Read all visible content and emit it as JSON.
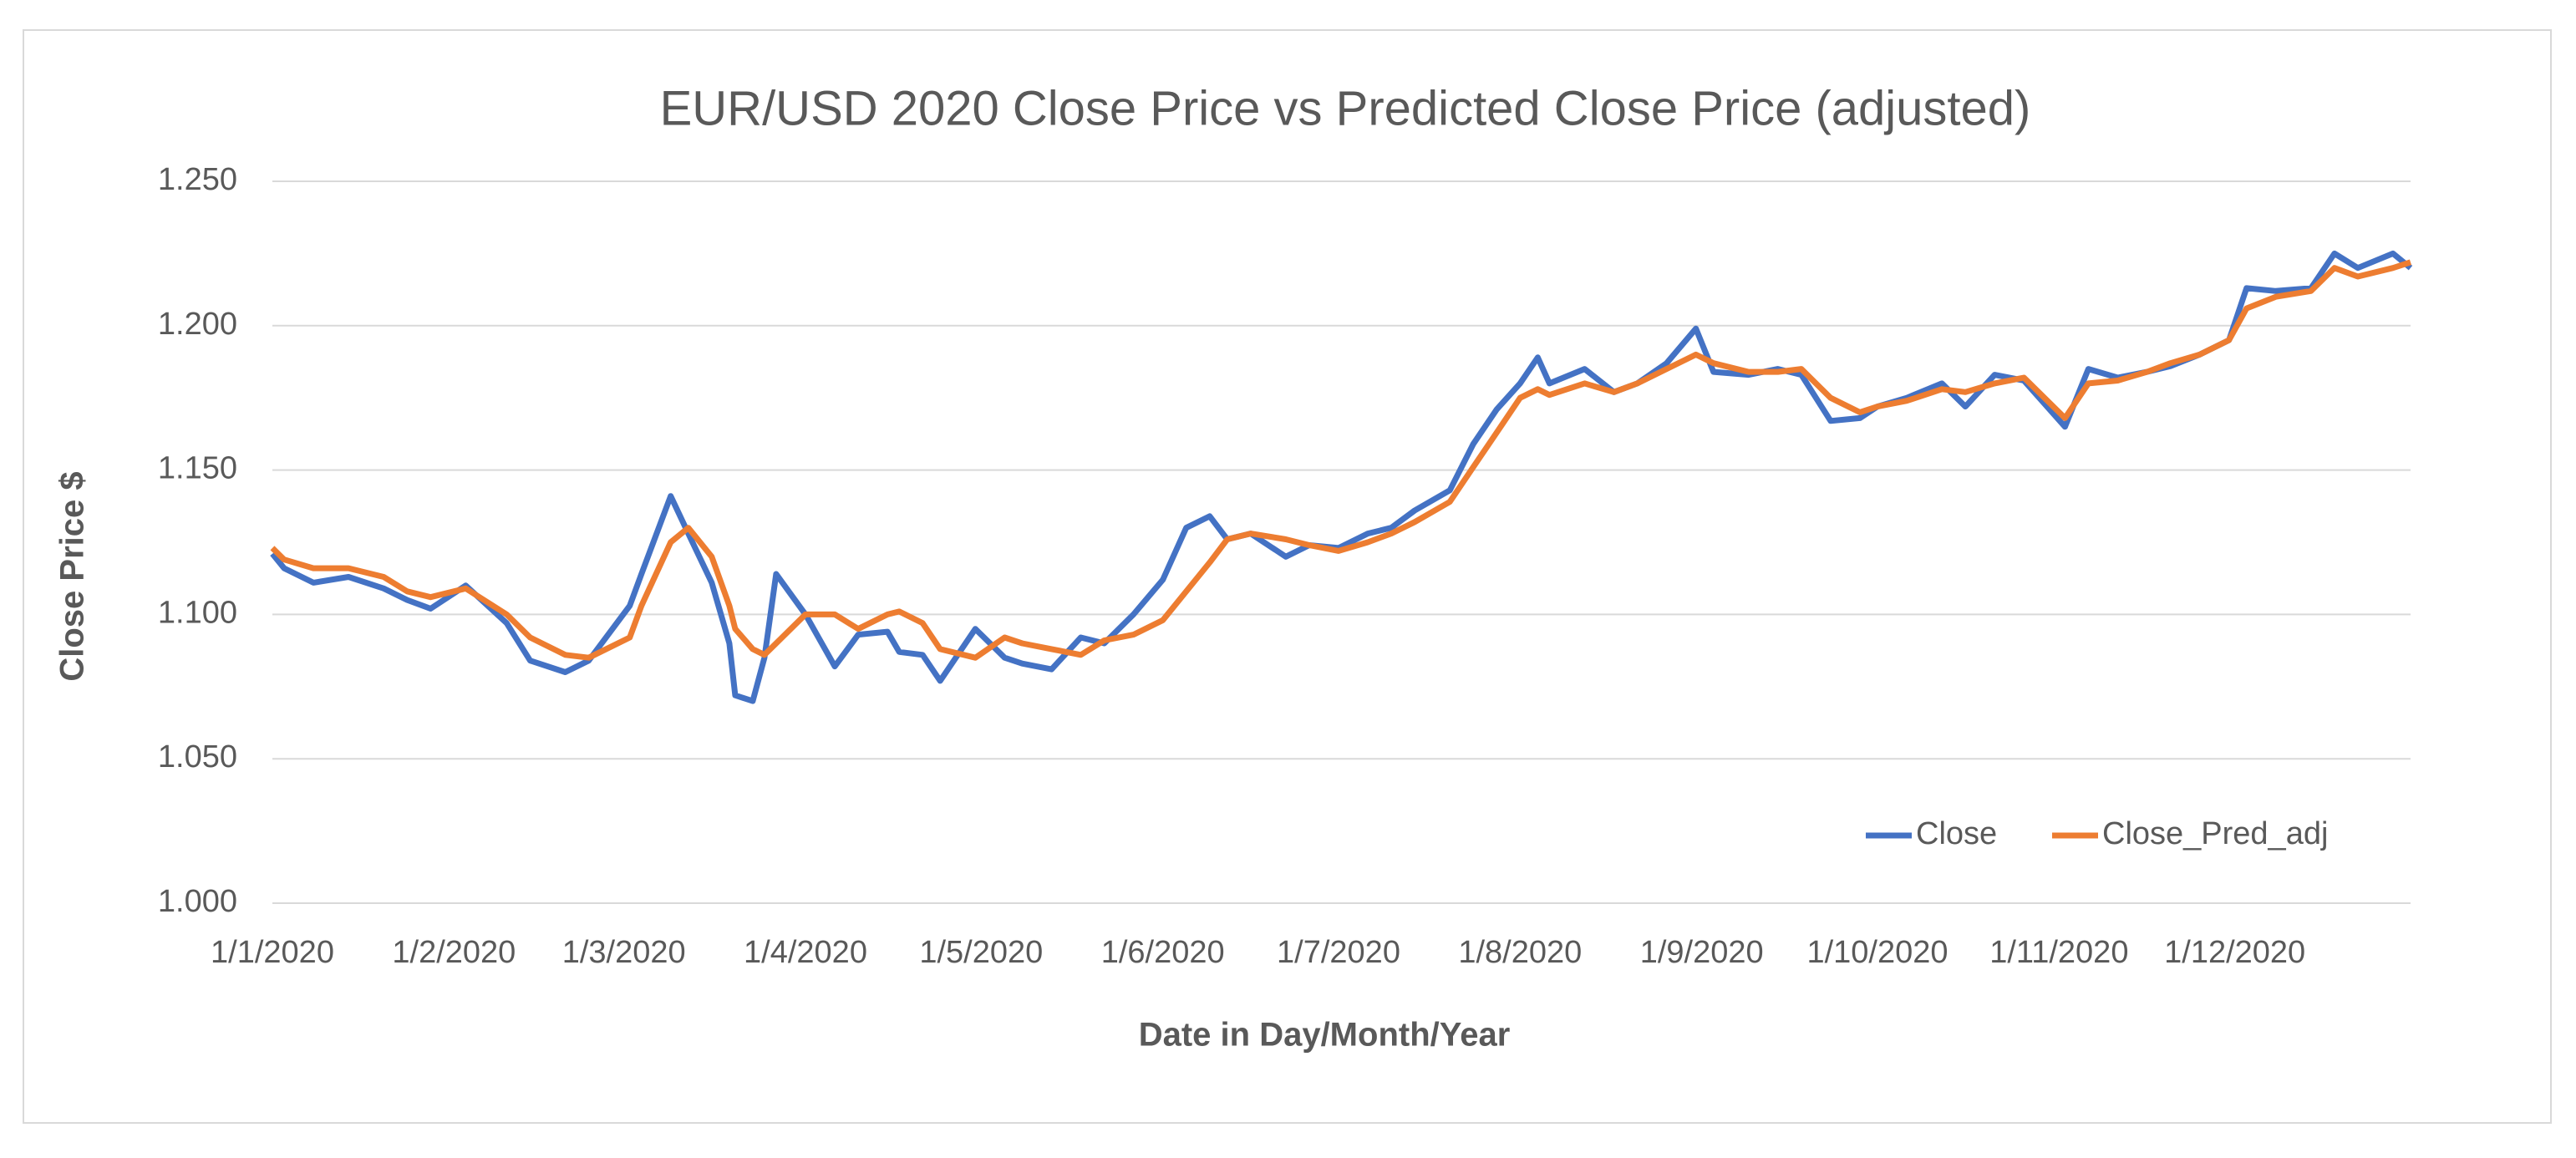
{
  "chart_data": {
    "type": "line",
    "title": "EUR/USD 2020 Close Price vs Predicted Close Price (adjusted)",
    "x_label": "Date in Day/Month/Year",
    "y_label": "Close Price $",
    "x": [
      "1/1/2020",
      "3/1/2020",
      "8/1/2020",
      "14/1/2020",
      "20/1/2020",
      "24/1/2020",
      "28/1/2020",
      "3/2/2020",
      "10/2/2020",
      "14/2/2020",
      "20/2/2020",
      "24/2/2020",
      "2/3/2020",
      "4/3/2020",
      "9/3/2020",
      "12/3/2020",
      "16/3/2020",
      "19/3/2020",
      "20/3/2020",
      "23/3/2020",
      "25/3/2020",
      "27/3/2020",
      "1/4/2020",
      "6/4/2020",
      "10/4/2020",
      "15/4/2020",
      "17/4/2020",
      "21/4/2020",
      "24/4/2020",
      "30/4/2020",
      "5/5/2020",
      "8/5/2020",
      "13/5/2020",
      "18/5/2020",
      "22/5/2020",
      "27/5/2020",
      "1/6/2020",
      "5/6/2020",
      "9/6/2020",
      "12/6/2020",
      "16/6/2020",
      "22/6/2020",
      "26/6/2020",
      "1/7/2020",
      "6/7/2020",
      "10/7/2020",
      "14/7/2020",
      "20/7/2020",
      "24/7/2020",
      "28/7/2020",
      "1/8/2020",
      "4/8/2020",
      "6/8/2020",
      "12/8/2020",
      "17/8/2020",
      "21/8/2020",
      "26/8/2020",
      "31/8/2020",
      "3/9/2020",
      "9/9/2020",
      "14/9/2020",
      "18/9/2020",
      "23/9/2020",
      "28/9/2020",
      "1/10/2020",
      "6/10/2020",
      "12/10/2020",
      "16/10/2020",
      "21/10/2020",
      "26/10/2020",
      "2/11/2020",
      "6/11/2020",
      "11/11/2020",
      "16/11/2020",
      "20/11/2020",
      "25/11/2020",
      "30/11/2020",
      "3/12/2020",
      "8/12/2020",
      "14/12/2020",
      "18/12/2020",
      "22/12/2020",
      "28/12/2020",
      "31/12/2020"
    ],
    "series": [
      {
        "name": "Close",
        "color": "#4472c4",
        "values": [
          1.121,
          1.116,
          1.111,
          1.113,
          1.109,
          1.105,
          1.102,
          1.11,
          1.097,
          1.084,
          1.08,
          1.084,
          1.103,
          1.114,
          1.141,
          1.128,
          1.111,
          1.09,
          1.072,
          1.07,
          1.085,
          1.114,
          1.1,
          1.082,
          1.093,
          1.094,
          1.087,
          1.086,
          1.077,
          1.095,
          1.085,
          1.083,
          1.081,
          1.092,
          1.09,
          1.1,
          1.112,
          1.13,
          1.134,
          1.126,
          1.128,
          1.12,
          1.124,
          1.123,
          1.128,
          1.13,
          1.136,
          1.143,
          1.159,
          1.171,
          1.18,
          1.189,
          1.18,
          1.185,
          1.177,
          1.18,
          1.187,
          1.199,
          1.184,
          1.183,
          1.185,
          1.183,
          1.167,
          1.168,
          1.172,
          1.175,
          1.18,
          1.172,
          1.183,
          1.181,
          1.165,
          1.185,
          1.182,
          1.184,
          1.186,
          1.19,
          1.195,
          1.213,
          1.212,
          1.213,
          1.225,
          1.22,
          1.225,
          1.22
        ]
      },
      {
        "name": "Close_Pred_adj",
        "color": "#ed7d31",
        "values": [
          1.123,
          1.119,
          1.116,
          1.116,
          1.113,
          1.108,
          1.106,
          1.109,
          1.1,
          1.092,
          1.086,
          1.085,
          1.092,
          1.103,
          1.125,
          1.13,
          1.12,
          1.103,
          1.095,
          1.088,
          1.086,
          1.09,
          1.1,
          1.1,
          1.095,
          1.1,
          1.101,
          1.097,
          1.088,
          1.085,
          1.092,
          1.09,
          1.088,
          1.086,
          1.091,
          1.093,
          1.098,
          1.108,
          1.118,
          1.126,
          1.128,
          1.126,
          1.124,
          1.122,
          1.125,
          1.128,
          1.132,
          1.139,
          1.151,
          1.163,
          1.175,
          1.178,
          1.176,
          1.18,
          1.177,
          1.18,
          1.185,
          1.19,
          1.187,
          1.184,
          1.184,
          1.185,
          1.175,
          1.17,
          1.172,
          1.174,
          1.178,
          1.177,
          1.18,
          1.182,
          1.168,
          1.18,
          1.181,
          1.184,
          1.187,
          1.19,
          1.195,
          1.206,
          1.21,
          1.212,
          1.22,
          1.217,
          1.22,
          1.222
        ]
      }
    ],
    "xlim": [
      "1/1/2020",
      "31/12/2020"
    ],
    "xticks": [
      "1/1/2020",
      "1/2/2020",
      "1/3/2020",
      "1/4/2020",
      "1/5/2020",
      "1/6/2020",
      "1/7/2020",
      "1/8/2020",
      "1/9/2020",
      "1/10/2020",
      "1/11/2020",
      "1/12/2020"
    ],
    "ylim": [
      1.0,
      1.25
    ],
    "yticks": [
      {
        "value": 1.0,
        "label": "1.000"
      },
      {
        "value": 1.05,
        "label": "1.050"
      },
      {
        "value": 1.1,
        "label": "1.100"
      },
      {
        "value": 1.15,
        "label": "1.150"
      },
      {
        "value": 1.2,
        "label": "1.200"
      },
      {
        "value": 1.25,
        "label": "1.250"
      }
    ],
    "grid": true,
    "legend": "lower right"
  }
}
